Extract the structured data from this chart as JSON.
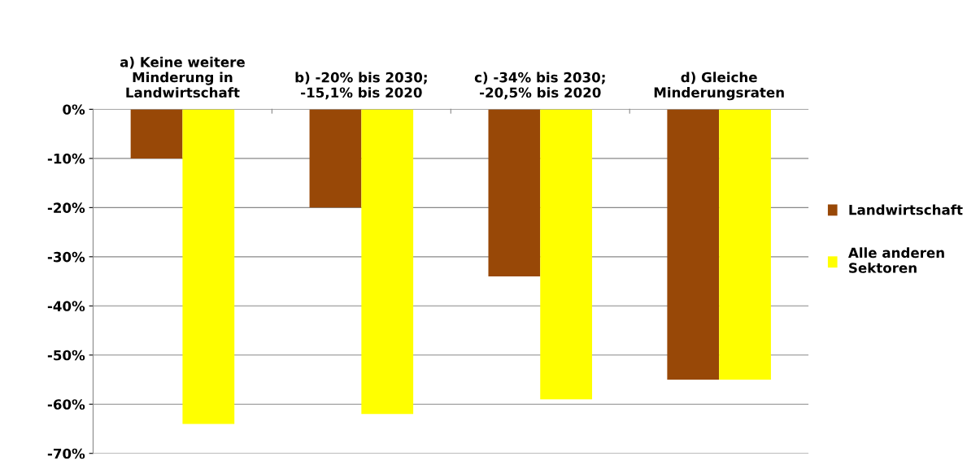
{
  "chart_data": {
    "type": "bar",
    "categories": [
      "a) Keine weitere\nMinderung in\nLandwirtschaft",
      "b) -20% bis 2030;\n-15,1% bis 2020",
      "c) -34% bis 2030;\n-20,5% bis 2020",
      "d) Gleiche\nMinderungsraten"
    ],
    "series": [
      {
        "name": "Landwirtschaft",
        "color": "#984807",
        "values": [
          -10,
          -20,
          -34,
          -55
        ]
      },
      {
        "name": "Alle anderen\nSektoren",
        "color": "#ffff00",
        "values": [
          -64,
          -62,
          -59,
          -55
        ]
      }
    ],
    "ylim": [
      -70,
      0
    ],
    "yticks": [
      {
        "value": -70,
        "label": "-70%"
      },
      {
        "value": -60,
        "label": "-60%"
      },
      {
        "value": -50,
        "label": "-50%"
      },
      {
        "value": -40,
        "label": "-40%"
      },
      {
        "value": -30,
        "label": "-30%"
      },
      {
        "value": -20,
        "label": "-20%"
      },
      {
        "value": -10,
        "label": "-10%"
      },
      {
        "value": 0,
        "label": "0%"
      }
    ],
    "grid": "y",
    "legend": "right"
  }
}
